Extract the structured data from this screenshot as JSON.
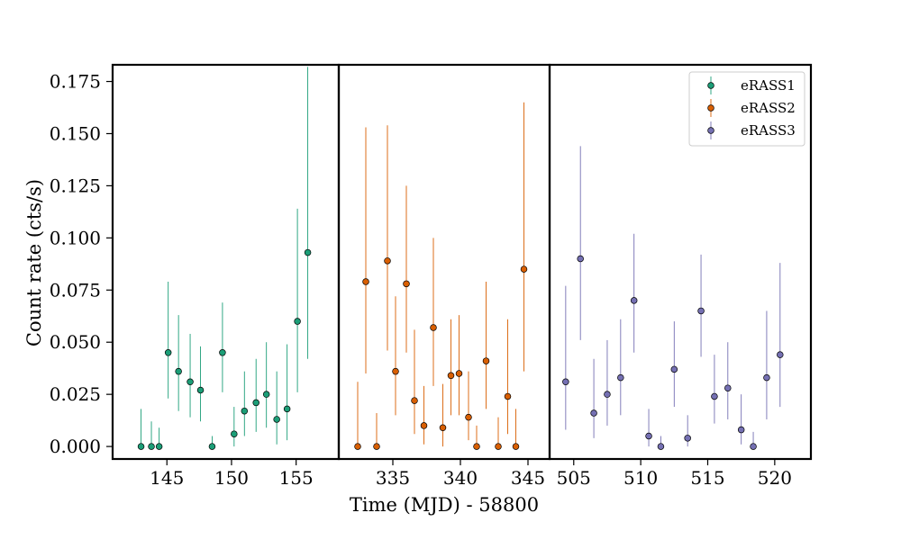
{
  "chart_data": {
    "type": "scatter",
    "xlabel": "Time (MJD) - 58800",
    "ylabel": "Count rate (cts/s)",
    "ylim": [
      -0.006,
      0.183
    ],
    "y_ticks": [
      "0.000",
      "0.025",
      "0.050",
      "0.075",
      "0.100",
      "0.125",
      "0.150",
      "0.175"
    ],
    "legend_position": "top-right",
    "panels": [
      {
        "xlim": [
          140.8,
          158.3
        ],
        "x_ticks": [
          145,
          150,
          155
        ]
      },
      {
        "xlim": [
          331.0,
          346.6
        ],
        "x_ticks": [
          335,
          340,
          345
        ]
      },
      {
        "xlim": [
          503.2,
          522.7
        ],
        "x_ticks": [
          505,
          510,
          515,
          520
        ]
      }
    ],
    "series": [
      {
        "name": "eRASS1",
        "color": "#1b9e77",
        "panel": 0,
        "points": [
          {
            "x": 143.0,
            "y": 0.0,
            "lo": 0.0,
            "hi": 0.018
          },
          {
            "x": 143.8,
            "y": 0.0,
            "lo": 0.0,
            "hi": 0.012
          },
          {
            "x": 144.4,
            "y": 0.0,
            "lo": 0.0,
            "hi": 0.009
          },
          {
            "x": 145.1,
            "y": 0.045,
            "lo": 0.023,
            "hi": 0.079
          },
          {
            "x": 145.9,
            "y": 0.036,
            "lo": 0.017,
            "hi": 0.063
          },
          {
            "x": 146.8,
            "y": 0.031,
            "lo": 0.014,
            "hi": 0.054
          },
          {
            "x": 147.6,
            "y": 0.027,
            "lo": 0.012,
            "hi": 0.048
          },
          {
            "x": 148.5,
            "y": 0.0,
            "lo": 0.0,
            "hi": 0.005
          },
          {
            "x": 149.3,
            "y": 0.045,
            "lo": 0.026,
            "hi": 0.069
          },
          {
            "x": 150.2,
            "y": 0.006,
            "lo": 0.0,
            "hi": 0.019
          },
          {
            "x": 151.0,
            "y": 0.017,
            "lo": 0.005,
            "hi": 0.036
          },
          {
            "x": 151.9,
            "y": 0.021,
            "lo": 0.007,
            "hi": 0.042
          },
          {
            "x": 152.7,
            "y": 0.025,
            "lo": 0.009,
            "hi": 0.05
          },
          {
            "x": 153.5,
            "y": 0.013,
            "lo": 0.001,
            "hi": 0.036
          },
          {
            "x": 154.3,
            "y": 0.018,
            "lo": 0.003,
            "hi": 0.049
          },
          {
            "x": 155.1,
            "y": 0.06,
            "lo": 0.026,
            "hi": 0.114
          },
          {
            "x": 155.9,
            "y": 0.093,
            "lo": 0.042,
            "hi": 0.182
          }
        ]
      },
      {
        "name": "eRASS2",
        "color": "#d95f02",
        "panel": 1,
        "points": [
          {
            "x": 332.4,
            "y": 0.0,
            "lo": 0.0,
            "hi": 0.031
          },
          {
            "x": 333.0,
            "y": 0.079,
            "lo": 0.035,
            "hi": 0.153
          },
          {
            "x": 333.8,
            "y": 0.0,
            "lo": 0.0,
            "hi": 0.016
          },
          {
            "x": 334.6,
            "y": 0.089,
            "lo": 0.046,
            "hi": 0.154
          },
          {
            "x": 335.2,
            "y": 0.036,
            "lo": 0.015,
            "hi": 0.072
          },
          {
            "x": 336.0,
            "y": 0.078,
            "lo": 0.045,
            "hi": 0.125
          },
          {
            "x": 336.6,
            "y": 0.022,
            "lo": 0.006,
            "hi": 0.056
          },
          {
            "x": 337.3,
            "y": 0.01,
            "lo": 0.001,
            "hi": 0.029
          },
          {
            "x": 338.0,
            "y": 0.057,
            "lo": 0.029,
            "hi": 0.1
          },
          {
            "x": 338.7,
            "y": 0.009,
            "lo": 0.0,
            "hi": 0.03
          },
          {
            "x": 339.3,
            "y": 0.034,
            "lo": 0.015,
            "hi": 0.061
          },
          {
            "x": 339.9,
            "y": 0.035,
            "lo": 0.015,
            "hi": 0.063
          },
          {
            "x": 340.6,
            "y": 0.014,
            "lo": 0.003,
            "hi": 0.036
          },
          {
            "x": 341.2,
            "y": 0.0,
            "lo": 0.0,
            "hi": 0.01
          },
          {
            "x": 341.9,
            "y": 0.041,
            "lo": 0.018,
            "hi": 0.079
          },
          {
            "x": 342.8,
            "y": 0.0,
            "lo": 0.0,
            "hi": 0.014
          },
          {
            "x": 343.5,
            "y": 0.024,
            "lo": 0.006,
            "hi": 0.061
          },
          {
            "x": 344.1,
            "y": 0.0,
            "lo": 0.0,
            "hi": 0.018
          },
          {
            "x": 344.7,
            "y": 0.085,
            "lo": 0.036,
            "hi": 0.165
          }
        ]
      },
      {
        "name": "eRASS3",
        "color": "#7570b3",
        "panel": 2,
        "points": [
          {
            "x": 504.4,
            "y": 0.031,
            "lo": 0.008,
            "hi": 0.077
          },
          {
            "x": 505.5,
            "y": 0.09,
            "lo": 0.051,
            "hi": 0.144
          },
          {
            "x": 506.5,
            "y": 0.016,
            "lo": 0.004,
            "hi": 0.042
          },
          {
            "x": 507.5,
            "y": 0.025,
            "lo": 0.01,
            "hi": 0.051
          },
          {
            "x": 508.5,
            "y": 0.033,
            "lo": 0.015,
            "hi": 0.061
          },
          {
            "x": 509.5,
            "y": 0.07,
            "lo": 0.045,
            "hi": 0.102
          },
          {
            "x": 510.6,
            "y": 0.005,
            "lo": 0.0,
            "hi": 0.018
          },
          {
            "x": 511.5,
            "y": 0.0,
            "lo": 0.0,
            "hi": 0.005
          },
          {
            "x": 512.5,
            "y": 0.037,
            "lo": 0.019,
            "hi": 0.06
          },
          {
            "x": 513.5,
            "y": 0.004,
            "lo": 0.0,
            "hi": 0.015
          },
          {
            "x": 514.5,
            "y": 0.065,
            "lo": 0.043,
            "hi": 0.092
          },
          {
            "x": 515.5,
            "y": 0.024,
            "lo": 0.011,
            "hi": 0.044
          },
          {
            "x": 516.5,
            "y": 0.028,
            "lo": 0.013,
            "hi": 0.05
          },
          {
            "x": 517.5,
            "y": 0.008,
            "lo": 0.001,
            "hi": 0.025
          },
          {
            "x": 518.4,
            "y": 0.0,
            "lo": 0.0,
            "hi": 0.007
          },
          {
            "x": 519.4,
            "y": 0.033,
            "lo": 0.013,
            "hi": 0.065
          },
          {
            "x": 520.4,
            "y": 0.044,
            "lo": 0.019,
            "hi": 0.088
          }
        ]
      }
    ]
  }
}
